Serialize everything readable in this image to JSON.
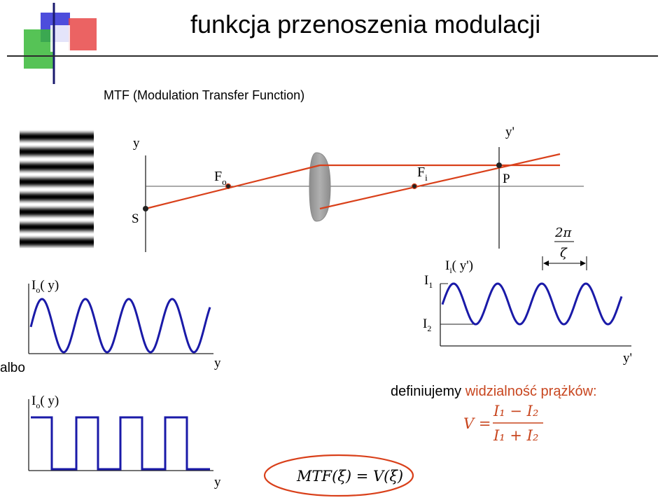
{
  "title": "funkcja przenoszenia modulacji",
  "subtitle": "MTF (Modulation Transfer Function)",
  "albo_label": "albo",
  "definition": {
    "prefix": "definiujemy ",
    "highlight": "widzialność prążków:"
  },
  "formula": {
    "lhs": "V =",
    "numerator": "I₁ − I₂",
    "denominator": "I₁ + I₂"
  },
  "mtf_formula": "MTF(ξ) = V(ξ)",
  "optics": {
    "object_axis_label": "y",
    "image_axis_label": "y'",
    "object_focus_label": "F",
    "object_focus_sub": "o",
    "image_focus_label": "F",
    "image_focus_sub": "i",
    "source_label": "S",
    "image_point_label": "P",
    "period_numerator": "2π",
    "period_denominator": "ζ"
  },
  "input_plot": {
    "y_label_main": "I",
    "y_label_sub": "o",
    "y_label_arg": "( y)",
    "x_label": "y"
  },
  "output_plot": {
    "y_label_main": "I",
    "y_label_sub": "i",
    "y_label_arg": "( y')",
    "level_high_main": "I",
    "level_high_sub": "1",
    "level_low_main": "I",
    "level_low_sub": "2",
    "x_label": "y'"
  },
  "square_plot": {
    "y_label_main": "I",
    "y_label_sub": "o",
    "y_label_arg": "( y)",
    "x_label": "y"
  },
  "colors": {
    "ray": "#d9401a",
    "wave": "#1a1aa8",
    "lens": "#9a9a9a",
    "ellipse": "#d9401a",
    "highlight_text": "#c8461f",
    "formula_text": "#c8461f"
  }
}
